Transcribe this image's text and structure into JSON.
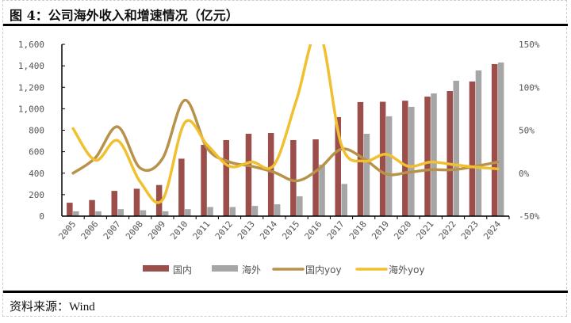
{
  "title": "图 4：公司海外收入和增速情况（亿元）",
  "source": "资料来源：Wind",
  "colors": {
    "domestic": "#9b4e4a",
    "overseas": "#a6a6a6",
    "domestic_yoy": "#b8924a",
    "overseas_yoy": "#f0c030"
  },
  "chart_data": {
    "type": "bar+line",
    "categories": [
      "2005",
      "2006",
      "2007",
      "2008",
      "2009",
      "2010",
      "2011",
      "2012",
      "2013",
      "2014",
      "2015",
      "2016",
      "2017",
      "2018",
      "2019",
      "2020",
      "2021",
      "2022",
      "2023",
      "2024"
    ],
    "left_axis": {
      "ylim": [
        0,
        1600
      ],
      "ticks": [
        0,
        200,
        400,
        600,
        800,
        1000,
        1200,
        1400,
        1600
      ],
      "tick_labels": [
        "0",
        "200",
        "400",
        "600",
        "800",
        "1,000",
        "1,200",
        "1,400",
        "1,600"
      ]
    },
    "right_axis": {
      "ylim": [
        -50,
        150
      ],
      "ticks": [
        -50,
        0,
        50,
        100,
        150
      ],
      "tick_labels": [
        "-50%",
        "0%",
        "50%",
        "100%",
        "150%"
      ]
    },
    "series": [
      {
        "name": "国内",
        "type": "bar",
        "axis": "left",
        "values": [
          125,
          150,
          235,
          255,
          290,
          535,
          664,
          708,
          767,
          774,
          708,
          715,
          922,
          1062,
          1065,
          1075,
          1113,
          1165,
          1254,
          1416
        ]
      },
      {
        "name": "海外",
        "type": "bar",
        "axis": "left",
        "values": [
          45,
          45,
          65,
          55,
          45,
          65,
          85,
          85,
          95,
          110,
          185,
          480,
          300,
          767,
          930,
          1018,
          1143,
          1261,
          1357,
          1431
        ]
      },
      {
        "name": "国内yoy",
        "type": "line",
        "axis": "right",
        "values": [
          0,
          18,
          54,
          6,
          17,
          85,
          29,
          13,
          8,
          1,
          -9,
          5,
          28,
          17,
          -1,
          1,
          4,
          4,
          8,
          13
        ]
      },
      {
        "name": "海外yoy",
        "type": "line",
        "axis": "right",
        "values": [
          52,
          15,
          38,
          -10,
          -31,
          59,
          33,
          8,
          13,
          10,
          86,
          165,
          33,
          14,
          22,
          8,
          13,
          10,
          7,
          5
        ]
      }
    ],
    "legend": "bottom",
    "grid": false
  }
}
